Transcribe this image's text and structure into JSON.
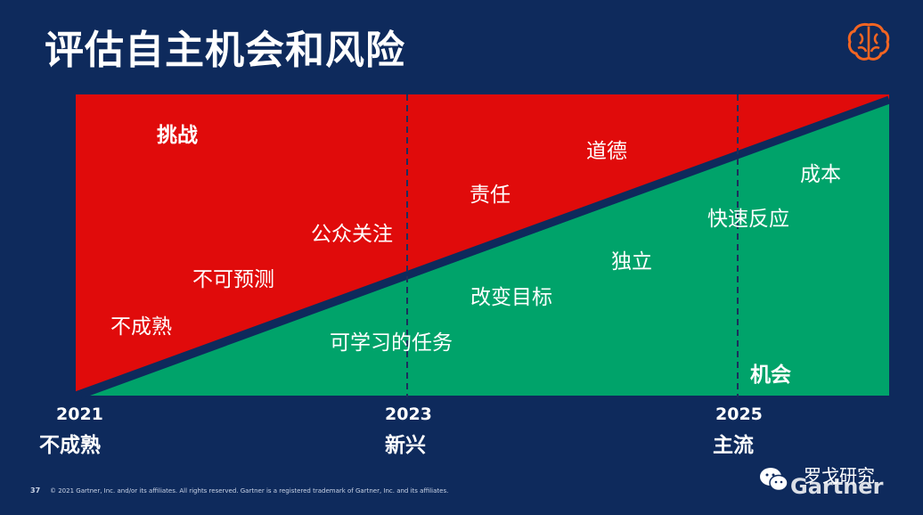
{
  "title": "评估自主机会和风险",
  "zones": {
    "challenge_label": "挑战",
    "opportunity_label": "机会",
    "challenge_color": "#e00b0b",
    "opportunity_color": "#00a36a",
    "divider_color": "#0e2a5c"
  },
  "risk_items": [
    "不成熟",
    "不可预测",
    "公众关注",
    "责任",
    "道德"
  ],
  "opportunity_items": [
    "可学习的任务",
    "改变目标",
    "独立",
    "快速反应",
    "成本"
  ],
  "timeline": [
    {
      "year": "2021",
      "stage": "不成熟"
    },
    {
      "year": "2023",
      "stage": "新兴"
    },
    {
      "year": "2025",
      "stage": "主流"
    }
  ],
  "footer": {
    "page_number": "37",
    "copyright": "© 2021 Gartner, Inc. and/or its affiliates. All rights reserved. Gartner is a registered trademark of Gartner, Inc. and its affiliates."
  },
  "brand": {
    "logo": "Gartner",
    "watermark": "罗戈研究",
    "icon": "brain-icon",
    "wechat_icon": "wechat-icon",
    "accent": "#f26522"
  }
}
